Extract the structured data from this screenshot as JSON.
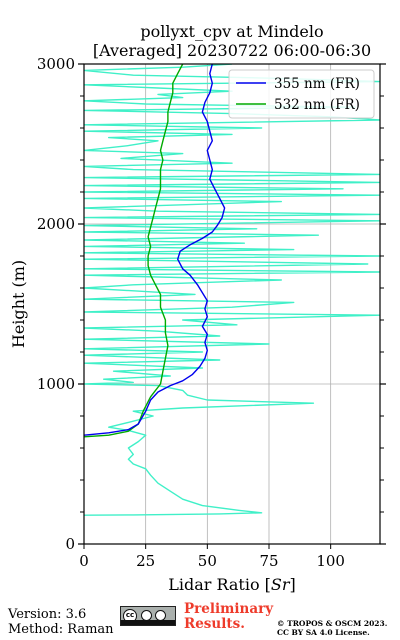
{
  "chart_data": {
    "type": "line",
    "title": [
      "pollyxt_cpv at Mindelo",
      "[Averaged] 20230722 06:00-06:30"
    ],
    "xlabel": "Lidar Ratio [$Sr$]",
    "xlabel_main": "Lidar Ratio [",
    "xlabel_unit": "Sr",
    "xlabel_close": "]",
    "ylabel": "Height (m)",
    "xlim": [
      0,
      120
    ],
    "ylim": [
      0,
      3000
    ],
    "xticks": [
      0,
      25,
      50,
      75,
      100
    ],
    "yticks": [
      0,
      1000,
      2000,
      3000
    ],
    "grid": true,
    "legend_position": "top-right",
    "series": [
      {
        "name": "355 nm (FR)",
        "color": "#0000ee",
        "points": [
          [
            0,
            680
          ],
          [
            10,
            695
          ],
          [
            18,
            715
          ],
          [
            22,
            750
          ],
          [
            25,
            830
          ],
          [
            27,
            900
          ],
          [
            30,
            950
          ],
          [
            35,
            990
          ],
          [
            40,
            1020
          ],
          [
            44,
            1060
          ],
          [
            47,
            1110
          ],
          [
            49,
            1160
          ],
          [
            50,
            1210
          ],
          [
            49,
            1260
          ],
          [
            50,
            1310
          ],
          [
            48,
            1360
          ],
          [
            50,
            1420
          ],
          [
            49,
            1470
          ],
          [
            50,
            1520
          ],
          [
            48,
            1570
          ],
          [
            46,
            1620
          ],
          [
            43,
            1680
          ],
          [
            40,
            1720
          ],
          [
            38,
            1780
          ],
          [
            39,
            1830
          ],
          [
            43,
            1870
          ],
          [
            48,
            1910
          ],
          [
            52,
            1950
          ],
          [
            54,
            1990
          ],
          [
            56,
            2040
          ],
          [
            57,
            2100
          ],
          [
            55,
            2160
          ],
          [
            53,
            2220
          ],
          [
            51,
            2280
          ],
          [
            52,
            2340
          ],
          [
            51,
            2400
          ],
          [
            50,
            2460
          ],
          [
            52,
            2520
          ],
          [
            51,
            2580
          ],
          [
            50,
            2640
          ],
          [
            48,
            2700
          ],
          [
            49,
            2760
          ],
          [
            51,
            2820
          ],
          [
            52,
            2880
          ],
          [
            51,
            2940
          ],
          [
            52,
            3000
          ]
        ]
      },
      {
        "name": "532 nm (FR)",
        "color": "#00aa00",
        "points": [
          [
            0,
            670
          ],
          [
            10,
            680
          ],
          [
            18,
            705
          ],
          [
            22,
            750
          ],
          [
            24,
            830
          ],
          [
            27,
            920
          ],
          [
            29,
            960
          ],
          [
            31,
            1000
          ],
          [
            32,
            1080
          ],
          [
            33,
            1160
          ],
          [
            34,
            1240
          ],
          [
            33,
            1320
          ],
          [
            33,
            1400
          ],
          [
            31,
            1480
          ],
          [
            31,
            1560
          ],
          [
            29,
            1620
          ],
          [
            27,
            1680
          ],
          [
            26,
            1740
          ],
          [
            26,
            1800
          ],
          [
            27,
            1860
          ],
          [
            26,
            1920
          ],
          [
            27,
            1980
          ],
          [
            28,
            2040
          ],
          [
            29,
            2100
          ],
          [
            30,
            2160
          ],
          [
            31,
            2220
          ],
          [
            31,
            2280
          ],
          [
            31,
            2340
          ],
          [
            32,
            2400
          ],
          [
            31,
            2460
          ],
          [
            32,
            2520
          ],
          [
            33,
            2580
          ],
          [
            34,
            2640
          ],
          [
            34,
            2700
          ],
          [
            35,
            2760
          ],
          [
            36,
            2820
          ],
          [
            36,
            2880
          ],
          [
            38,
            2940
          ],
          [
            40,
            3000
          ]
        ]
      },
      {
        "name": "",
        "color": "#40f0c8",
        "points": [
          [
            0,
            180
          ],
          [
            20,
            182
          ],
          [
            55,
            188
          ],
          [
            72,
            195
          ],
          [
            63,
            210
          ],
          [
            48,
            240
          ],
          [
            40,
            280
          ],
          [
            35,
            330
          ],
          [
            30,
            380
          ],
          [
            27,
            430
          ],
          [
            25,
            470
          ],
          [
            20,
            500
          ],
          [
            18,
            530
          ],
          [
            20,
            560
          ],
          [
            18,
            600
          ],
          [
            22,
            640
          ],
          [
            25,
            680
          ],
          [
            18,
            710
          ],
          [
            10,
            730
          ],
          [
            18,
            760
          ],
          [
            28,
            800
          ],
          [
            20,
            830
          ],
          [
            40,
            850
          ],
          [
            93,
            880
          ],
          [
            50,
            900
          ],
          [
            42,
            930
          ],
          [
            40,
            960
          ],
          [
            30,
            990
          ],
          [
            0,
            1000
          ],
          [
            20,
            1010
          ],
          [
            8,
            1030
          ],
          [
            35,
            1050
          ],
          [
            12,
            1080
          ],
          [
            48,
            1100
          ],
          [
            0,
            1130
          ],
          [
            55,
            1150
          ],
          [
            0,
            1180
          ],
          [
            48,
            1200
          ],
          [
            0,
            1220
          ],
          [
            75,
            1250
          ],
          [
            0,
            1280
          ],
          [
            55,
            1300
          ],
          [
            30,
            1330
          ],
          [
            0,
            1350
          ],
          [
            62,
            1370
          ],
          [
            40,
            1400
          ],
          [
            120,
            1430
          ],
          [
            0,
            1450
          ],
          [
            60,
            1480
          ],
          [
            85,
            1510
          ],
          [
            0,
            1530
          ],
          [
            45,
            1560
          ],
          [
            0,
            1600
          ],
          [
            20,
            1620
          ],
          [
            80,
            1650
          ],
          [
            0,
            1680
          ],
          [
            120,
            1700
          ],
          [
            0,
            1720
          ],
          [
            115,
            1750
          ],
          [
            0,
            1780
          ],
          [
            120,
            1800
          ],
          [
            0,
            1820
          ],
          [
            85,
            1840
          ],
          [
            0,
            1860
          ],
          [
            65,
            1880
          ],
          [
            0,
            1900
          ],
          [
            95,
            1930
          ],
          [
            0,
            1950
          ],
          [
            70,
            1970
          ],
          [
            0,
            1990
          ],
          [
            120,
            2020
          ],
          [
            0,
            2040
          ],
          [
            120,
            2060
          ],
          [
            30,
            2080
          ],
          [
            0,
            2100
          ],
          [
            40,
            2120
          ],
          [
            80,
            2140
          ],
          [
            0,
            2160
          ],
          [
            120,
            2180
          ],
          [
            0,
            2200
          ],
          [
            105,
            2220
          ],
          [
            0,
            2240
          ],
          [
            120,
            2260
          ],
          [
            0,
            2290
          ],
          [
            120,
            2310
          ],
          [
            20,
            2340
          ],
          [
            0,
            2360
          ],
          [
            60,
            2380
          ],
          [
            15,
            2410
          ],
          [
            40,
            2440
          ],
          [
            0,
            2460
          ],
          [
            18,
            2490
          ],
          [
            30,
            2520
          ],
          [
            10,
            2540
          ],
          [
            60,
            2560
          ],
          [
            0,
            2580
          ],
          [
            72,
            2600
          ],
          [
            0,
            2620
          ],
          [
            120,
            2650
          ],
          [
            100,
            2670
          ],
          [
            60,
            2690
          ],
          [
            0,
            2710
          ],
          [
            110,
            2730
          ],
          [
            25,
            2750
          ],
          [
            0,
            2770
          ],
          [
            40,
            2790
          ],
          [
            30,
            2810
          ],
          [
            60,
            2830
          ],
          [
            30,
            2850
          ],
          [
            0,
            2870
          ],
          [
            120,
            2890
          ],
          [
            80,
            2910
          ],
          [
            20,
            2930
          ],
          [
            0,
            2960
          ],
          [
            40,
            2980
          ],
          [
            60,
            3000
          ]
        ]
      }
    ]
  },
  "footer": {
    "version": "Version: 3.6",
    "method": "Method: Raman",
    "preliminary_line1": "Preliminary",
    "preliminary_line2": "Results.",
    "copyright_line1": "© TROPOS & OSCM 2023.",
    "copyright_line2": "CC BY SA 4.0 License.",
    "cc_badge_text": "cc"
  },
  "colors": {
    "grid": "#b0b0b0",
    "axis": "#000000",
    "preliminary": "#ee3b2b"
  }
}
